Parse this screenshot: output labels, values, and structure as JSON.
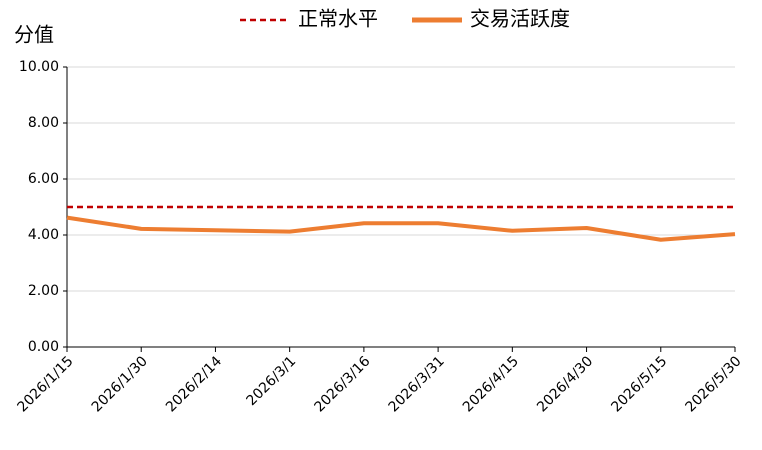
{
  "chart_data": {
    "type": "line",
    "y_label": "分值",
    "categories": [
      "2026/1/15",
      "2026/1/30",
      "2026/2/14",
      "2026/3/1",
      "2026/3/16",
      "2026/3/31",
      "2026/4/15",
      "2026/4/30",
      "2026/5/15",
      "2026/5/30"
    ],
    "series": [
      {
        "name": "正常水平",
        "color": "#c00000",
        "dashed": true,
        "values": [
          5,
          5,
          5,
          5,
          5,
          5,
          5,
          5,
          5,
          5
        ]
      },
      {
        "name": "交易活跃度",
        "color": "#ed7d31",
        "dashed": false,
        "values": [
          4.62,
          4.22,
          4.17,
          4.12,
          4.42,
          4.42,
          4.15,
          4.25,
          3.83,
          4.03
        ]
      }
    ],
    "ylim": [
      0,
      10
    ],
    "yticks": [
      {
        "value": 0,
        "label": "0.00"
      },
      {
        "value": 2,
        "label": "2.00"
      },
      {
        "value": 4,
        "label": "4.00"
      },
      {
        "value": 6,
        "label": "6.00"
      },
      {
        "value": 8,
        "label": "8.00"
      },
      {
        "value": 10,
        "label": "10.00"
      }
    ],
    "grid": true
  }
}
